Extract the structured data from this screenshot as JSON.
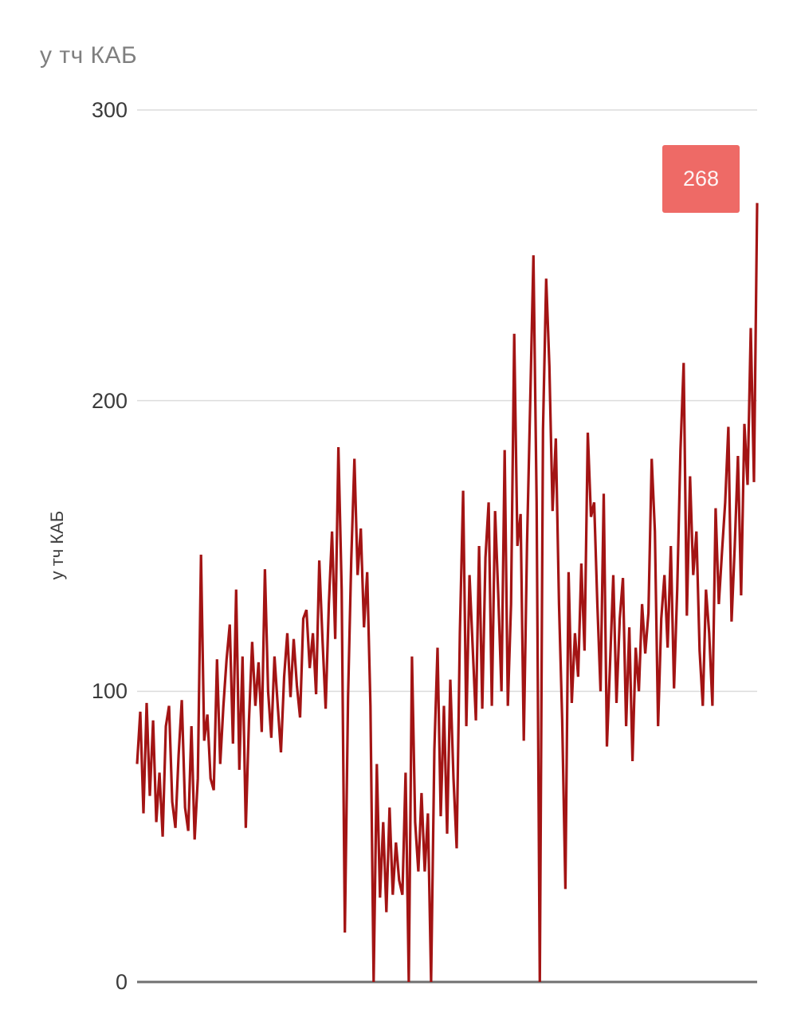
{
  "title": "у тч КАБ",
  "badge": {
    "label": "268",
    "color": "#ee6a66",
    "text_color": "#fdf4f4"
  },
  "chart_data": {
    "type": "line",
    "title": "у тч КАБ",
    "xlabel": "",
    "ylabel": "у тч КАБ",
    "ylim": [
      0,
      300
    ],
    "yticks": [
      0,
      100,
      200,
      300
    ],
    "grid": true,
    "legend": "none",
    "line_color": "#a31414",
    "grid_color": "#dcdcdc",
    "axis_color": "#707070",
    "last_point_label": "268",
    "values": [
      75,
      93,
      58,
      96,
      64,
      90,
      55,
      72,
      50,
      88,
      95,
      62,
      53,
      78,
      97,
      60,
      52,
      88,
      49,
      70,
      147,
      83,
      92,
      70,
      66,
      111,
      75,
      95,
      111,
      123,
      82,
      135,
      73,
      112,
      53,
      90,
      117,
      95,
      110,
      86,
      142,
      100,
      84,
      112,
      95,
      79,
      105,
      120,
      98,
      118,
      102,
      91,
      125,
      128,
      108,
      120,
      99,
      145,
      118,
      94,
      130,
      155,
      118,
      184,
      135,
      17,
      98,
      145,
      180,
      140,
      156,
      122,
      141,
      95,
      0,
      75,
      29,
      55,
      24,
      60,
      30,
      48,
      35,
      30,
      72,
      0,
      112,
      55,
      38,
      65,
      38,
      58,
      0,
      80,
      115,
      57,
      95,
      51,
      104,
      70,
      46,
      120,
      169,
      88,
      140,
      115,
      90,
      150,
      94,
      146,
      165,
      95,
      162,
      133,
      100,
      183,
      95,
      130,
      223,
      150,
      161,
      83,
      151,
      200,
      250,
      165,
      0,
      190,
      242,
      212,
      162,
      187,
      130,
      90,
      32,
      141,
      96,
      120,
      105,
      144,
      114,
      189,
      160,
      165,
      130,
      100,
      168,
      81,
      110,
      140,
      96,
      125,
      139,
      88,
      122,
      76,
      115,
      100,
      130,
      113,
      127,
      180,
      155,
      88,
      125,
      140,
      115,
      150,
      101,
      135,
      183,
      213,
      126,
      174,
      140,
      155,
      114,
      95,
      135,
      120,
      95,
      163,
      130,
      148,
      165,
      191,
      124,
      150,
      181,
      133,
      192,
      171,
      225,
      172,
      268
    ]
  }
}
